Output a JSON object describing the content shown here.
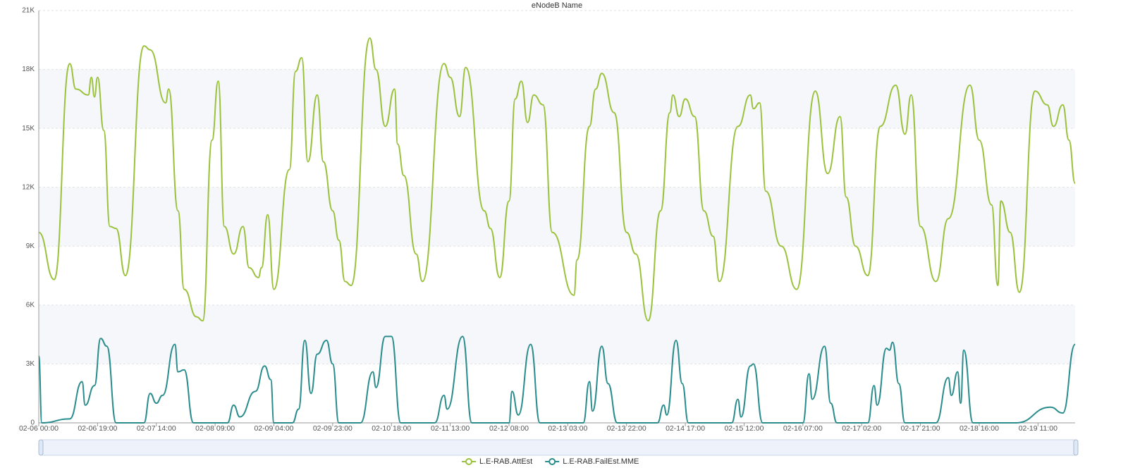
{
  "chart_data": {
    "type": "line",
    "title": "eNodeB Name",
    "xlim": [
      "02-06 00:00",
      "02-19 23:00"
    ],
    "xticks": [
      "02-06 00:00",
      "02-06 19:00",
      "02-07 14:00",
      "02-08 09:00",
      "02-09 04:00",
      "02-09 23:00",
      "02-10 18:00",
      "02-11 13:00",
      "02-12 08:00",
      "02-13 03:00",
      "02-13 22:00",
      "02-14 17:00",
      "02-15 12:00",
      "02-16 07:00",
      "02-17 02:00",
      "02-17 21:00",
      "02-18 16:00",
      "02-19 11:00"
    ],
    "ylim": [
      0,
      21000
    ],
    "yticks": [
      0,
      {
        "value": 3000,
        "label": "3K"
      },
      {
        "value": 6000,
        "label": "6K"
      },
      {
        "value": 9000,
        "label": "9K"
      },
      {
        "value": 12000,
        "label": "12K"
      },
      {
        "value": 15000,
        "label": "15K"
      },
      {
        "value": 18000,
        "label": "18K"
      },
      {
        "value": 21000,
        "label": "21K"
      }
    ],
    "grid": true,
    "legend": "bottom",
    "series": [
      {
        "name": "L.E-RAB.AttEst",
        "color": "#9bc23c",
        "x": [
          "02-06 00:00",
          "02-06 05:00",
          "02-06 10:00",
          "02-06 12:00",
          "02-06 16:00",
          "02-06 17:00",
          "02-06 18:00",
          "02-06 19:00",
          "02-06 21:00",
          "02-06 23:00",
          "02-07 01:00",
          "02-07 04:00",
          "02-07 10:00",
          "02-07 12:00",
          "02-07 17:00",
          "02-07 18:00",
          "02-07 21:00",
          "02-07 23:00",
          "02-08 03:00",
          "02-08 05:00",
          "02-08 08:00",
          "02-08 10:00",
          "02-08 12:00",
          "02-08 15:00",
          "02-08 18:00",
          "02-08 20:00",
          "02-08 23:00",
          "02-09 00:00",
          "02-09 02:00",
          "02-09 04:00",
          "02-09 09:00",
          "02-09 11:00",
          "02-09 13:00",
          "02-09 15:00",
          "02-09 18:00",
          "02-09 20:00",
          "02-09 23:00",
          "02-10 01:00",
          "02-10 03:00",
          "02-10 05:00",
          "02-10 11:00",
          "02-10 13:00",
          "02-10 16:00",
          "02-10 19:00",
          "02-10 20:00",
          "02-10 22:00",
          "02-11 02:00",
          "02-11 04:00",
          "02-11 11:00",
          "02-11 13:00",
          "02-11 16:00",
          "02-11 18:00",
          "02-12 00:00",
          "02-12 02:00",
          "02-12 05:00",
          "02-12 08:00",
          "02-12 10:00",
          "02-12 12:00",
          "02-12 14:00",
          "02-12 16:00",
          "02-12 19:00",
          "02-12 22:00",
          "02-13 05:00",
          "02-13 06:00",
          "02-13 10:00",
          "02-13 12:00",
          "02-13 14:00",
          "02-13 18:00",
          "02-13 22:00",
          "02-14 01:00",
          "02-14 05:00",
          "02-14 09:00",
          "02-14 12:00",
          "02-14 13:00",
          "02-14 15:00",
          "02-14 17:00",
          "02-14 20:00",
          "02-14 23:00",
          "02-15 02:00",
          "02-15 04:00",
          "02-15 10:00",
          "02-15 14:00",
          "02-15 15:00",
          "02-15 17:00",
          "02-15 19:00",
          "02-16 00:00",
          "02-16 05:00",
          "02-16 11:00",
          "02-16 15:00",
          "02-16 19:00",
          "02-16 21:00",
          "02-17 00:00",
          "02-17 04:00",
          "02-17 08:00",
          "02-17 13:00",
          "02-17 16:00",
          "02-17 18:00",
          "02-17 21:00",
          "02-18 02:00",
          "02-18 06:00",
          "02-18 13:00",
          "02-18 16:00",
          "02-18 20:00",
          "02-18 22:00",
          "02-18 23:00",
          "02-19 02:00",
          "02-19 05:00",
          "02-19 10:00",
          "02-19 14:00",
          "02-19 16:00",
          "02-19 19:00",
          "02-19 21:00",
          "02-19 23:00"
        ],
        "values": [
          9700,
          7300,
          18300,
          17000,
          16700,
          17600,
          16600,
          17600,
          14900,
          10000,
          9900,
          7500,
          19200,
          19000,
          16300,
          17000,
          10800,
          6800,
          5400,
          5200,
          14400,
          17400,
          10000,
          8600,
          10000,
          7900,
          7400,
          7900,
          10600,
          6800,
          12900,
          17900,
          18600,
          13300,
          16700,
          13300,
          10800,
          9300,
          7200,
          7000,
          19600,
          18000,
          15100,
          17000,
          14200,
          12600,
          8600,
          7200,
          18300,
          17600,
          15600,
          18100,
          10800,
          9900,
          7400,
          11300,
          16500,
          17400,
          15300,
          16700,
          16200,
          9700,
          6500,
          8300,
          15100,
          17000,
          17800,
          15800,
          9700,
          8600,
          5200,
          10800,
          15800,
          16700,
          15600,
          16500,
          15600,
          10800,
          9500,
          7200,
          15100,
          16700,
          16000,
          16300,
          11800,
          9000,
          6800,
          16900,
          12700,
          15600,
          11500,
          9000,
          7500,
          15100,
          17200,
          14700,
          16700,
          10000,
          7200,
          10400,
          17200,
          14400,
          11100,
          7000,
          11300,
          9700,
          6650,
          16900,
          16200,
          15100,
          16200,
          14400,
          12200
        ]
      },
      {
        "name": "L.E-RAB.FailEst.MME",
        "color": "#2a8c8c",
        "x": [
          "02-06 00:00",
          "02-06 01:00",
          "02-06 10:00",
          "02-06 14:00",
          "02-06 15:00",
          "02-06 18:00",
          "02-06 20:00",
          "02-06 22:00",
          "02-07 01:00",
          "02-07 10:00",
          "02-07 12:00",
          "02-07 14:00",
          "02-07 16:00",
          "02-07 20:00",
          "02-07 21:00",
          "02-07 23:00",
          "02-08 02:00",
          "02-08 13:00",
          "02-08 15:00",
          "02-08 17:00",
          "02-08 22:00",
          "02-09 01:00",
          "02-09 03:00",
          "02-09 04:00",
          "02-09 10:00",
          "02-09 12:00",
          "02-09 14:00",
          "02-09 16:00",
          "02-09 18:00",
          "02-09 21:00",
          "02-09 23:00",
          "02-10 01:00",
          "02-10 08:00",
          "02-10 12:00",
          "02-10 13:00",
          "02-10 16:00",
          "02-10 18:00",
          "02-10 21:00",
          "02-11 08:00",
          "02-11 11:00",
          "02-11 12:00",
          "02-11 17:00",
          "02-11 20:00",
          "02-12 08:00",
          "02-12 09:00",
          "02-12 11:00",
          "02-12 15:00",
          "02-12 18:00",
          "02-13 08:00",
          "02-13 10:00",
          "02-13 11:00",
          "02-13 14:00",
          "02-13 16:00",
          "02-13 19:00",
          "02-14 08:00",
          "02-14 10:00",
          "02-14 11:00",
          "02-14 14:00",
          "02-14 16:00",
          "02-14 18:00",
          "02-15 08:00",
          "02-15 10:00",
          "02-15 11:00",
          "02-15 14:00",
          "02-15 15:00",
          "02-15 18:00",
          "02-16 07:00",
          "02-16 09:00",
          "02-16 10:00",
          "02-16 14:00",
          "02-16 16:00",
          "02-16 18:00",
          "02-17 04:00",
          "02-17 06:00",
          "02-17 07:00",
          "02-17 10:00",
          "02-17 11:00",
          "02-17 12:00",
          "02-17 14:00",
          "02-17 16:00",
          "02-18 02:00",
          "02-18 06:00",
          "02-18 07:00",
          "02-18 09:00",
          "02-18 10:00",
          "02-18 11:00",
          "02-18 14:00",
          "02-19 04:00",
          "02-19 15:00",
          "02-19 19:00",
          "02-19 23:00"
        ],
        "values": [
          3400,
          0,
          200,
          2100,
          900,
          1900,
          4300,
          3900,
          0,
          0,
          1500,
          1000,
          1400,
          4000,
          2600,
          2700,
          0,
          0,
          900,
          300,
          1600,
          2900,
          2200,
          0,
          0,
          700,
          4200,
          1500,
          3500,
          4200,
          3000,
          0,
          0,
          2600,
          1800,
          4400,
          4400,
          0,
          0,
          1400,
          700,
          4400,
          0,
          0,
          1600,
          400,
          4000,
          0,
          0,
          2100,
          600,
          3900,
          2000,
          0,
          0,
          900,
          400,
          4200,
          2000,
          0,
          0,
          1200,
          300,
          2900,
          3000,
          0,
          0,
          2500,
          1200,
          3900,
          1000,
          0,
          0,
          1900,
          900,
          3800,
          3700,
          4100,
          2000,
          0,
          0,
          2300,
          1400,
          2600,
          1000,
          3700,
          0,
          0,
          800,
          500,
          4000
        ]
      }
    ]
  }
}
